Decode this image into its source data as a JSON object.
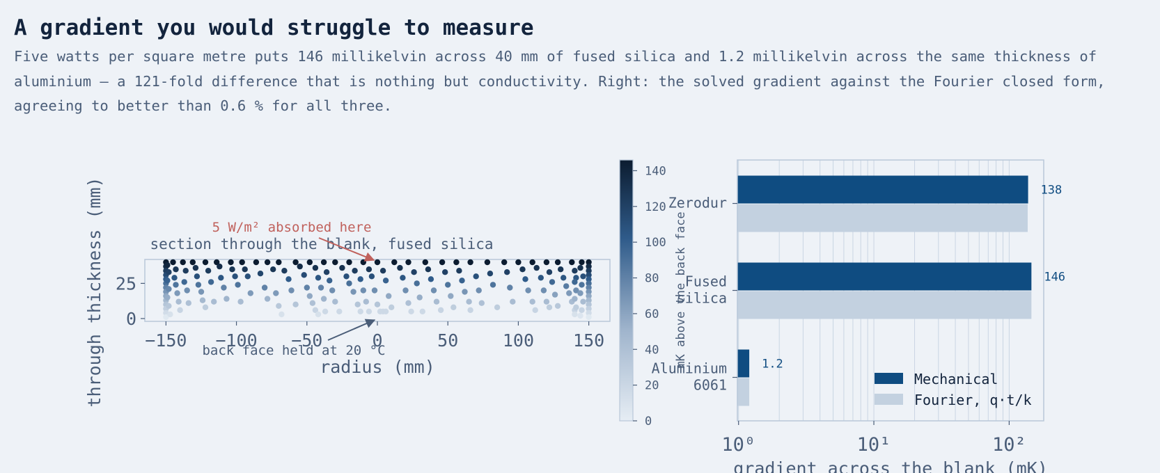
{
  "title": "A gradient you would struggle to measure",
  "subtitle": "Five watts per square metre puts 146 millikelvin across 40 mm of fused silica and 1.2 millikelvin across the same thickness of aluminium — a 121-fold difference that is nothing but conductivity. Right: the solved gradient against the Fourier closed form, agreeing to better than 0.6 % for all three.",
  "colors": {
    "background": "#eef2f7",
    "mechanical": "#0f4c81",
    "fourier": "#c3d1e0",
    "annotation_heat": "#c0615c",
    "annotation_back": "#4a5d78",
    "colormap_low": "#e6edf4",
    "colormap_high": "#0c1c30"
  },
  "chart_data": [
    {
      "type": "scatter",
      "title": "section through the blank, fused silica",
      "xlabel": "radius  (mm)",
      "ylabel": "through thickness  (mm)",
      "xlim": [
        -165,
        165
      ],
      "ylim": [
        -2,
        42
      ],
      "xticks": [
        -150,
        -100,
        -50,
        0,
        50,
        100,
        150
      ],
      "xtick_labels": [
        "−150",
        "−100",
        "−50",
        "0",
        "50",
        "100",
        "150"
      ],
      "yticks": [
        0,
        25
      ],
      "ytick_labels": [
        "0",
        "25"
      ],
      "color_variable": "mK above the back face",
      "colorbar": {
        "label": "mK above the back face",
        "range": [
          0,
          146
        ],
        "ticks": [
          0,
          20,
          40,
          60,
          80,
          100,
          120,
          140
        ],
        "tick_labels": [
          "0",
          "20",
          "40",
          "60",
          "80",
          "100",
          "120",
          "140"
        ]
      },
      "annotations": [
        {
          "text": "5 W/m² absorbed here",
          "x": 0,
          "y": 40
        },
        {
          "text": "back face held at 20 °C",
          "x": 0,
          "y": 0
        }
      ],
      "points": [
        [
          -150,
          40,
          146
        ],
        [
          -150,
          37,
          135
        ],
        [
          -150,
          34,
          124
        ],
        [
          -150,
          31,
          113
        ],
        [
          -150,
          28,
          102
        ],
        [
          -150,
          25,
          91
        ],
        [
          -150,
          22,
          80
        ],
        [
          -150,
          19,
          69
        ],
        [
          -150,
          16,
          58
        ],
        [
          -150,
          13,
          47
        ],
        [
          -150,
          10,
          36
        ],
        [
          -150,
          7,
          26
        ],
        [
          -150,
          4,
          15
        ],
        [
          -150,
          1,
          4
        ],
        [
          -149,
          38,
          139
        ],
        [
          -148,
          33,
          120
        ],
        [
          -149,
          27,
          98
        ],
        [
          -148,
          21,
          77
        ],
        [
          -149,
          15,
          55
        ],
        [
          -148,
          9,
          33
        ],
        [
          -147,
          3,
          11
        ],
        [
          -145,
          40,
          146
        ],
        [
          -143,
          35,
          128
        ],
        [
          -144,
          29,
          106
        ],
        [
          -143,
          24,
          88
        ],
        [
          -142,
          18,
          66
        ],
        [
          -141,
          12,
          44
        ],
        [
          -140,
          6,
          22
        ],
        [
          -138,
          40,
          146
        ],
        [
          -136,
          34,
          124
        ],
        [
          -137,
          26,
          95
        ],
        [
          -135,
          20,
          73
        ],
        [
          -134,
          11,
          40
        ],
        [
          -131,
          40,
          146
        ],
        [
          -129,
          36,
          131
        ],
        [
          -128,
          30,
          110
        ],
        [
          -127,
          24,
          88
        ],
        [
          -125,
          19,
          69
        ],
        [
          -124,
          13,
          47
        ],
        [
          -122,
          8,
          29
        ],
        [
          -122,
          40,
          146
        ],
        [
          -120,
          34,
          124
        ],
        [
          -118,
          26,
          95
        ],
        [
          -116,
          12,
          44
        ],
        [
          -114,
          40,
          146
        ],
        [
          -112,
          37,
          135
        ],
        [
          -111,
          29,
          106
        ],
        [
          -109,
          22,
          80
        ],
        [
          -107,
          14,
          51
        ],
        [
          -104,
          40,
          146
        ],
        [
          -103,
          35,
          128
        ],
        [
          -101,
          30,
          110
        ],
        [
          -99,
          24,
          88
        ],
        [
          -97,
          12,
          44
        ],
        [
          -96,
          40,
          146
        ],
        [
          -94,
          35,
          128
        ],
        [
          -92,
          30,
          110
        ],
        [
          -90,
          18,
          66
        ],
        [
          -86,
          40,
          146
        ],
        [
          -83,
          32,
          117
        ],
        [
          -80,
          22,
          80
        ],
        [
          -78,
          14,
          51
        ],
        [
          -78,
          40,
          146
        ],
        [
          -74,
          35,
          128
        ],
        [
          -72,
          18,
          66
        ],
        [
          -70,
          9,
          33
        ],
        [
          -68,
          3,
          11
        ],
        [
          -70,
          40,
          146
        ],
        [
          -66,
          34,
          124
        ],
        [
          -63,
          28,
          102
        ],
        [
          -61,
          20,
          73
        ],
        [
          -58,
          10,
          36
        ],
        [
          -58,
          40,
          146
        ],
        [
          -55,
          37,
          135
        ],
        [
          -52,
          31,
          113
        ],
        [
          -50,
          22,
          80
        ],
        [
          -48,
          16,
          58
        ],
        [
          -46,
          11,
          40
        ],
        [
          -44,
          6,
          22
        ],
        [
          -42,
          3,
          11
        ],
        [
          -48,
          40,
          146
        ],
        [
          -44,
          36,
          131
        ],
        [
          -42,
          29,
          106
        ],
        [
          -40,
          22,
          80
        ],
        [
          -38,
          14,
          51
        ],
        [
          -37,
          5,
          18
        ],
        [
          -38,
          40,
          146
        ],
        [
          -36,
          33,
          120
        ],
        [
          -34,
          27,
          98
        ],
        [
          -32,
          20,
          73
        ],
        [
          -30,
          12,
          44
        ],
        [
          -27,
          5,
          18
        ],
        [
          -30,
          40,
          146
        ],
        [
          -25,
          36,
          131
        ],
        [
          -22,
          30,
          110
        ],
        [
          -20,
          25,
          91
        ],
        [
          -17,
          19,
          69
        ],
        [
          -14,
          10,
          36
        ],
        [
          -12,
          5,
          18
        ],
        [
          -20,
          40,
          146
        ],
        [
          -16,
          34,
          124
        ],
        [
          -12,
          28,
          102
        ],
        [
          -10,
          20,
          73
        ],
        [
          -8,
          12,
          44
        ],
        [
          -6,
          5,
          18
        ],
        [
          -10,
          40,
          146
        ],
        [
          -6,
          35,
          128
        ],
        [
          -4,
          30,
          110
        ],
        [
          -2,
          20,
          73
        ],
        [
          0,
          10,
          36
        ],
        [
          2,
          5,
          18
        ],
        [
          4,
          5,
          18
        ],
        [
          6,
          5,
          18
        ],
        [
          0,
          40,
          146
        ],
        [
          4,
          34,
          124
        ],
        [
          6,
          27,
          98
        ],
        [
          8,
          16,
          58
        ],
        [
          10,
          8,
          29
        ],
        [
          12,
          40,
          146
        ],
        [
          16,
          36,
          131
        ],
        [
          18,
          29,
          106
        ],
        [
          20,
          20,
          73
        ],
        [
          22,
          11,
          40
        ],
        [
          24,
          5,
          18
        ],
        [
          22,
          40,
          146
        ],
        [
          26,
          33,
          120
        ],
        [
          28,
          25,
          91
        ],
        [
          30,
          15,
          55
        ],
        [
          32,
          5,
          18
        ],
        [
          34,
          40,
          146
        ],
        [
          36,
          35,
          128
        ],
        [
          38,
          28,
          102
        ],
        [
          40,
          20,
          73
        ],
        [
          42,
          12,
          44
        ],
        [
          45,
          6,
          22
        ],
        [
          46,
          40,
          146
        ],
        [
          48,
          33,
          120
        ],
        [
          50,
          24,
          88
        ],
        [
          52,
          16,
          58
        ],
        [
          54,
          8,
          29
        ],
        [
          56,
          40,
          146
        ],
        [
          58,
          34,
          124
        ],
        [
          60,
          27,
          98
        ],
        [
          62,
          19,
          69
        ],
        [
          65,
          12,
          44
        ],
        [
          66,
          6,
          22
        ],
        [
          66,
          40,
          146
        ],
        [
          70,
          30,
          110
        ],
        [
          72,
          20,
          73
        ],
        [
          74,
          11,
          40
        ],
        [
          78,
          40,
          146
        ],
        [
          80,
          32,
          117
        ],
        [
          82,
          24,
          88
        ],
        [
          85,
          8,
          29
        ],
        [
          90,
          40,
          146
        ],
        [
          92,
          33,
          120
        ],
        [
          94,
          22,
          80
        ],
        [
          96,
          12,
          44
        ],
        [
          100,
          40,
          146
        ],
        [
          103,
          35,
          128
        ],
        [
          105,
          28,
          102
        ],
        [
          107,
          20,
          73
        ],
        [
          110,
          12,
          44
        ],
        [
          112,
          6,
          22
        ],
        [
          110,
          40,
          146
        ],
        [
          113,
          36,
          131
        ],
        [
          116,
          29,
          106
        ],
        [
          118,
          20,
          73
        ],
        [
          120,
          12,
          44
        ],
        [
          122,
          8,
          29
        ],
        [
          120,
          40,
          146
        ],
        [
          122,
          33,
          120
        ],
        [
          124,
          26,
          95
        ],
        [
          126,
          17,
          62
        ],
        [
          128,
          9,
          33
        ],
        [
          128,
          40,
          146
        ],
        [
          130,
          35,
          128
        ],
        [
          132,
          29,
          106
        ],
        [
          134,
          23,
          84
        ],
        [
          136,
          18,
          66
        ],
        [
          138,
          12,
          44
        ],
        [
          140,
          6,
          22
        ],
        [
          138,
          40,
          146
        ],
        [
          140,
          34,
          124
        ],
        [
          141,
          29,
          106
        ],
        [
          140,
          26,
          95
        ],
        [
          141,
          20,
          73
        ],
        [
          140,
          14,
          51
        ],
        [
          141,
          8,
          29
        ],
        [
          140,
          3,
          11
        ],
        [
          145,
          40,
          146
        ],
        [
          144,
          36,
          131
        ],
        [
          146,
          30,
          110
        ],
        [
          145,
          24,
          88
        ],
        [
          144,
          18,
          66
        ],
        [
          146,
          12,
          44
        ],
        [
          145,
          6,
          22
        ],
        [
          144,
          2,
          7
        ],
        [
          150,
          40,
          146
        ],
        [
          150,
          37,
          135
        ],
        [
          150,
          34,
          124
        ],
        [
          150,
          31,
          113
        ],
        [
          150,
          28,
          102
        ],
        [
          150,
          25,
          91
        ],
        [
          150,
          22,
          80
        ],
        [
          150,
          19,
          69
        ],
        [
          150,
          16,
          58
        ],
        [
          150,
          13,
          47
        ],
        [
          150,
          10,
          36
        ],
        [
          150,
          7,
          26
        ],
        [
          150,
          4,
          15
        ],
        [
          150,
          1,
          4
        ]
      ]
    },
    {
      "type": "bar",
      "orientation": "horizontal",
      "xlabel": "gradient across the blank  (mK)",
      "ylabel": "",
      "xscale": "log",
      "xlim": [
        0.98,
        180
      ],
      "xtick_labels": [
        "10⁰",
        "10¹",
        "10²"
      ],
      "categories": [
        "Zerodur",
        "Fused silica",
        "Aluminium 6061"
      ],
      "category_labels": [
        [
          "Zerodur"
        ],
        [
          "Fused",
          "silica"
        ],
        [
          "Aluminium",
          "6061"
        ]
      ],
      "series": [
        {
          "name": "Mechanical",
          "values": [
            138,
            146,
            1.2
          ]
        },
        {
          "name": "Fourier, q·t/k",
          "values": [
            137,
            146,
            1.2
          ]
        }
      ],
      "data_labels": [
        "138",
        "146",
        "1.2"
      ],
      "grid": true,
      "legend_position": "lower-right"
    }
  ]
}
